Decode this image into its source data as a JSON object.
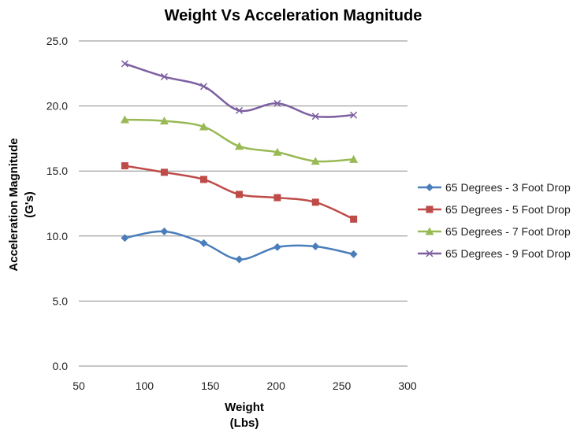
{
  "chart_data": {
    "type": "line",
    "title": "Weight Vs Acceleration Magnitude",
    "xlabel": [
      "Weight",
      "(Lbs)"
    ],
    "ylabel": [
      "Acceleration Magnitude",
      "(G's)"
    ],
    "xlim": [
      50,
      300
    ],
    "ylim": [
      0,
      25
    ],
    "x_ticks": [
      "50",
      "100",
      "150",
      "200",
      "250",
      "300"
    ],
    "y_ticks": [
      "0.0",
      "5.0",
      "10.0",
      "15.0",
      "20.0",
      "25.0"
    ],
    "grid": "horizontal major gridlines",
    "legend_position": "right",
    "x": [
      85,
      115,
      145,
      172,
      201,
      230,
      259
    ],
    "series": [
      {
        "name": "65 Degrees - 3 Foot Drop",
        "color": "#4a7ebb",
        "marker": "diamond",
        "values": [
          9.85,
          10.35,
          9.45,
          8.2,
          9.15,
          9.2,
          8.6
        ]
      },
      {
        "name": "65 Degrees - 5 Foot Drop",
        "color": "#be4b48",
        "marker": "square",
        "values": [
          15.4,
          14.9,
          14.35,
          13.2,
          12.95,
          12.6,
          11.3
        ]
      },
      {
        "name": "65 Degrees - 7 Foot Drop",
        "color": "#98b954",
        "marker": "triangle",
        "values": [
          18.95,
          18.85,
          18.4,
          16.9,
          16.45,
          15.75,
          15.9
        ]
      },
      {
        "name": "65 Degrees - 9 Foot Drop",
        "color": "#7d60a0",
        "marker": "x",
        "values": [
          23.25,
          22.25,
          21.5,
          19.65,
          20.2,
          19.2,
          19.3
        ]
      }
    ]
  }
}
